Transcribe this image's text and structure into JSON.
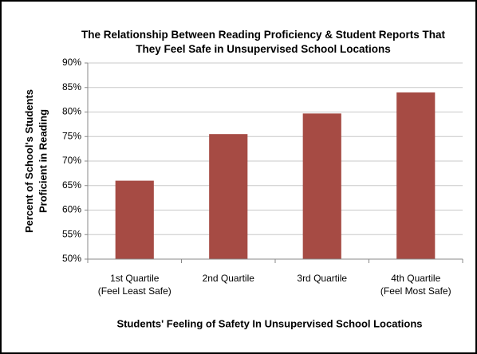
{
  "chart_data": {
    "type": "bar",
    "title": "The Relationship Between Reading Proficiency & Student Reports That\nThey Feel Safe in Unsupervised School Locations",
    "x_label": "Students' Feeling of Safety In Unsupervised School Locations",
    "y_label": "Percent of School's Students\nProficient in Reading",
    "categories": [
      "1st Quartile\n(Feel Least Safe)",
      "2nd Quartile",
      "3rd Quartile",
      "4th Quartile\n(Feel Most Safe)"
    ],
    "values": [
      66,
      75.5,
      79.7,
      84
    ],
    "color": "#a64b44",
    "ylim": [
      50,
      90
    ],
    "yticks": [
      {
        "value": 50,
        "label": "50%"
      },
      {
        "value": 55,
        "label": "55%"
      },
      {
        "value": 60,
        "label": "60%"
      },
      {
        "value": 65,
        "label": "65%"
      },
      {
        "value": 70,
        "label": "70%"
      },
      {
        "value": 75,
        "label": "75%"
      },
      {
        "value": 80,
        "label": "80%"
      },
      {
        "value": 85,
        "label": "85%"
      },
      {
        "value": 90,
        "label": "90%"
      }
    ],
    "grid": true
  }
}
